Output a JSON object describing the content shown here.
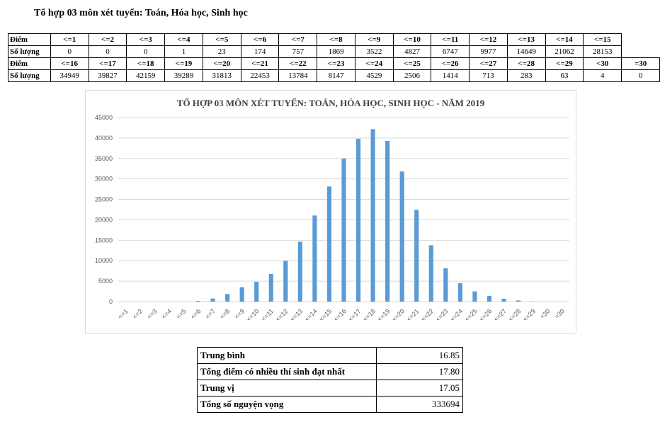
{
  "heading": "Tổ hợp 03 môn xét tuyển: Toán, Hóa học, Sinh học",
  "table": {
    "label_score": "Điểm",
    "label_count": "Số lượng",
    "row1_headers": [
      "<=1",
      "<=2",
      "<=3",
      "<=4",
      "<=5",
      "<=6",
      "<=7",
      "<=8",
      "<=9",
      "<=10",
      "<=11",
      "<=12",
      "<=13",
      "<=14",
      "<=15"
    ],
    "row1_values": [
      "0",
      "0",
      "0",
      "1",
      "23",
      "174",
      "757",
      "1869",
      "3522",
      "4827",
      "6747",
      "9977",
      "14649",
      "21062",
      "28153"
    ],
    "row2_headers": [
      "<=16",
      "<=17",
      "<=18",
      "<=19",
      "<=20",
      "<=21",
      "<=22",
      "<=23",
      "<=24",
      "<=25",
      "<=26",
      "<=27",
      "<=28",
      "<=29",
      "<30",
      "=30"
    ],
    "row2_values": [
      "34949",
      "39827",
      "42159",
      "39289",
      "31813",
      "22453",
      "13784",
      "8147",
      "4529",
      "2506",
      "1414",
      "713",
      "283",
      "63",
      "4",
      "0"
    ]
  },
  "chart_data": {
    "type": "bar",
    "title": "TỔ HỢP 03 MÔN XÉT TUYỂN: TOÁN, HÓA HỌC, SINH HỌC - NĂM 2019",
    "xlabel": "",
    "ylabel": "",
    "categories": [
      "<=1",
      "<=2",
      "<=3",
      "<=4",
      "<=5",
      "<=6",
      "<=7",
      "<=8",
      "<=9",
      "<=10",
      "<=11",
      "<=12",
      "<=13",
      "<=14",
      "<=15",
      "<=16",
      "<=17",
      "<=18",
      "<=19",
      "<=20",
      "<=21",
      "<=22",
      "<=23",
      "<=24",
      "<=25",
      "<=26",
      "<=27",
      "<=28",
      "<=29",
      "<30",
      "=30"
    ],
    "values": [
      0,
      0,
      0,
      1,
      23,
      174,
      757,
      1869,
      3522,
      4827,
      6747,
      9977,
      14649,
      21062,
      28153,
      34949,
      39827,
      42159,
      39289,
      31813,
      22453,
      13784,
      8147,
      4529,
      2506,
      1414,
      713,
      283,
      63,
      4,
      0
    ],
    "ylim": [
      0,
      45000
    ],
    "yticks": [
      "0",
      "5000",
      "10000",
      "15000",
      "20000",
      "25000",
      "30000",
      "35000",
      "40000",
      "45000"
    ],
    "grid": true,
    "legend": "none",
    "bar_color": "#5b9bd5"
  },
  "stats": [
    {
      "label": "Trung bình",
      "value": "16.85"
    },
    {
      "label": "Tổng điểm có nhiều thí sinh đạt nhất",
      "value": "17.80"
    },
    {
      "label": "Trung vị",
      "value": "17.05"
    },
    {
      "label": "Tổng số nguyện vọng",
      "value": "333694"
    }
  ]
}
